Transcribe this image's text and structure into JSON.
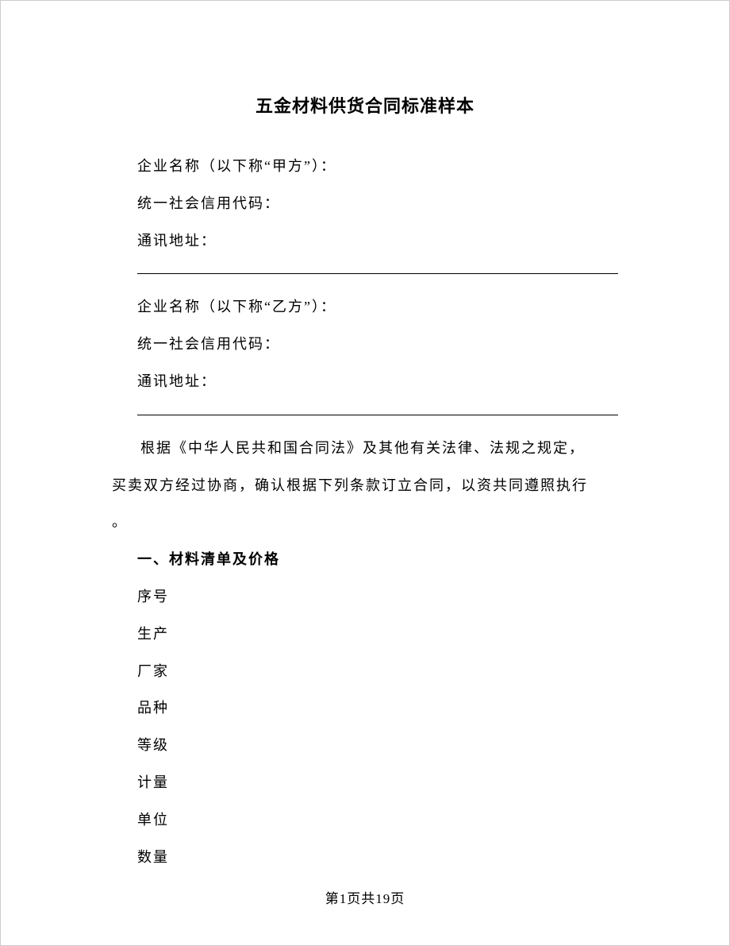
{
  "document": {
    "title": "五金材料供货合同标准样本",
    "partyA": {
      "name_label": "企业名称（以下称“甲方”）：",
      "code_label": "统一社会信用代码：",
      "address_label": "通讯地址："
    },
    "partyB": {
      "name_label": "企业名称（以下称“乙方”）：",
      "code_label": "统一社会信用代码：",
      "address_label": "通讯地址："
    },
    "preamble_line1": "根据《中华人民共和国合同法》及其他有关法律、法规之规定，",
    "preamble_line2": "买卖双方经过协商，确认根据下列条款订立合同，以资共同遵照执行",
    "preamble_line3": "。",
    "section1_heading": "一、材料清单及价格",
    "columns": {
      "c1": "序号",
      "c2": "生产",
      "c3": "厂家",
      "c4": "品种",
      "c5": "等级",
      "c6": "计量",
      "c7": "单位",
      "c8": "数量"
    },
    "footer": "第1页共19页"
  }
}
